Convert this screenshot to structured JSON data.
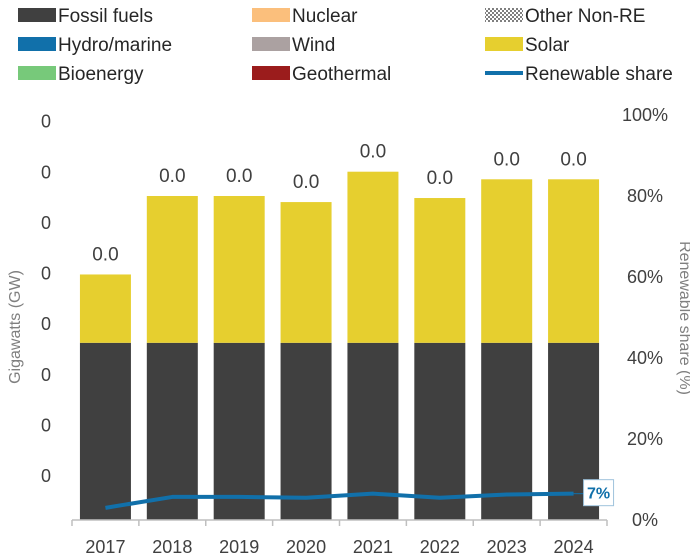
{
  "chart_data": {
    "type": "bar",
    "stacked": true,
    "categories": [
      "2017",
      "2018",
      "2019",
      "2020",
      "2021",
      "2022",
      "2023",
      "2024"
    ],
    "series": [
      {
        "name": "Fossil fuels",
        "kind": "bar",
        "color": "#404040",
        "values": [
          3.5,
          3.5,
          3.5,
          3.5,
          3.5,
          3.5,
          3.5,
          3.5
        ]
      },
      {
        "name": "Nuclear",
        "kind": "bar",
        "color": "#fbbf7c",
        "values": [
          0,
          0,
          0,
          0,
          0,
          0,
          0,
          0
        ]
      },
      {
        "name": "Other Non-RE",
        "kind": "bar",
        "color": "#7f7f7f",
        "pattern": "dotted",
        "values": [
          0,
          0,
          0,
          0,
          0,
          0,
          0,
          0
        ]
      },
      {
        "name": "Hydro/marine",
        "kind": "bar",
        "color": "#1170aa",
        "values": [
          0,
          0,
          0,
          0,
          0,
          0,
          0,
          0
        ]
      },
      {
        "name": "Wind",
        "kind": "bar",
        "color": "#aba1a1",
        "values": [
          0,
          0,
          0,
          0,
          0,
          0,
          0,
          0
        ]
      },
      {
        "name": "Solar",
        "kind": "bar",
        "color": "#e6cf2f",
        "values": [
          1.35,
          2.9,
          2.9,
          2.78,
          3.38,
          2.86,
          3.23,
          3.23
        ]
      },
      {
        "name": "Bioenergy",
        "kind": "bar",
        "color": "#77c97a",
        "values": [
          0,
          0,
          0,
          0,
          0,
          0,
          0,
          0
        ]
      },
      {
        "name": "Geothermal",
        "kind": "bar",
        "color": "#9b1c1c",
        "values": [
          0,
          0,
          0,
          0,
          0,
          0,
          0,
          0
        ]
      },
      {
        "name": "Renewable share",
        "kind": "line",
        "axis": "right",
        "color": "#1170aa",
        "values": [
          3.0,
          5.7,
          5.7,
          5.5,
          6.5,
          5.5,
          6.3,
          6.5
        ]
      }
    ],
    "bar_labels": [
      "0.0",
      "0.0",
      "0.0",
      "0.0",
      "0.0",
      "0.0",
      "0.0",
      "0.0"
    ],
    "ylabel": "Gigawatts (GW)",
    "y2label": "Renewable share (%)",
    "ylim": [
      0,
      8
    ],
    "y_tick_labels": [
      "0",
      "0",
      "0",
      "0",
      "0",
      "0",
      "0",
      "0"
    ],
    "y2lim": [
      0,
      100
    ],
    "y2_tick_labels": [
      "0%",
      "20%",
      "40%",
      "60%",
      "80%",
      "100%"
    ],
    "end_label": "7%",
    "legend_position": "top",
    "grid": false
  }
}
